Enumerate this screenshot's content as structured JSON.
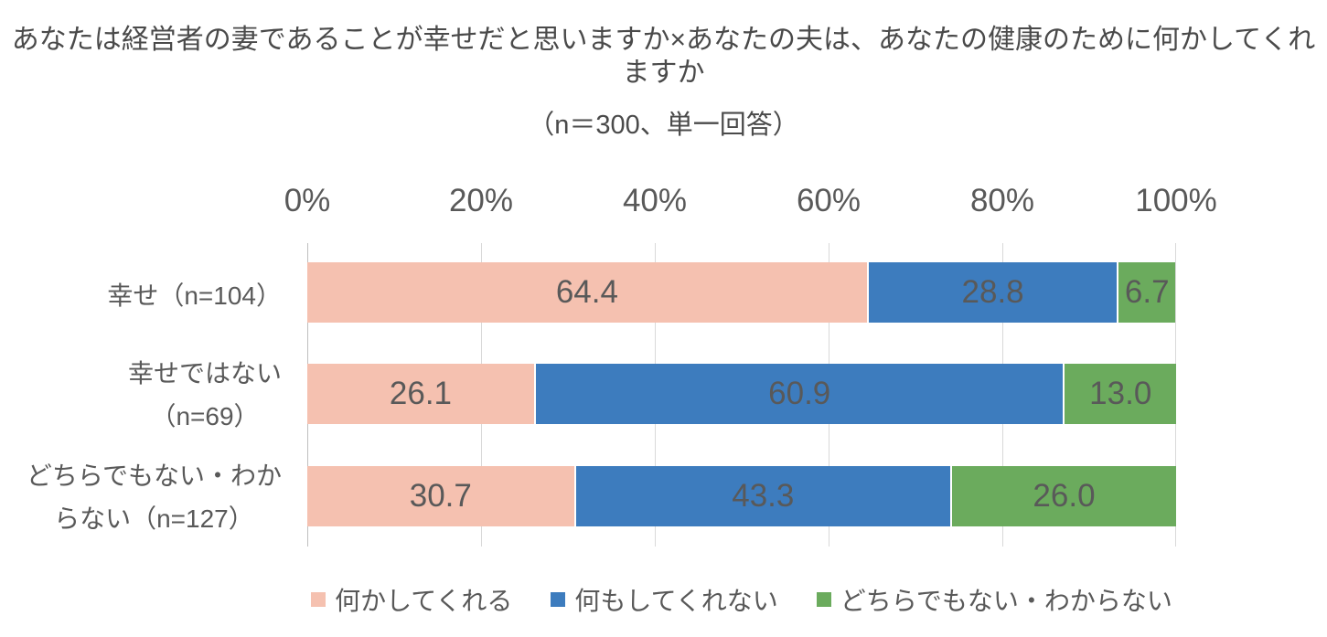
{
  "title": {
    "line1": "あなたは経営者の妻であることが幸せだと思いますか×あなたの夫は、あなたの健康のために何かしてくれますか",
    "line2": "（n＝300、単一回答）"
  },
  "chart_data": {
    "type": "bar",
    "orientation": "horizontal",
    "stacked": true,
    "unit": "percent",
    "grid": true,
    "legend_position": "bottom",
    "x_axis": {
      "range": [
        0,
        100
      ],
      "tick_labels": [
        "0%",
        "20%",
        "40%",
        "60%",
        "80%",
        "100%"
      ]
    },
    "categories": [
      {
        "label_lines": [
          "幸せ（n=104）"
        ],
        "n": 104
      },
      {
        "label_lines": [
          "幸せではない",
          "（n=69）"
        ],
        "n": 69
      },
      {
        "label_lines": [
          "どちらでもない・わか",
          "らない（n=127）"
        ],
        "n": 127
      }
    ],
    "series": [
      {
        "name": "何かしてくれる",
        "color": "#F5C1B0",
        "values": [
          64.4,
          26.1,
          30.7
        ]
      },
      {
        "name": "何もしてくれない",
        "color": "#3D7CBE",
        "values": [
          28.8,
          60.9,
          43.3
        ]
      },
      {
        "name": "どちらでもない・わからない",
        "color": "#6BAB5D",
        "values": [
          6.7,
          13.0,
          26.0
        ]
      }
    ]
  },
  "colors": {
    "grid": "#D9D9D9",
    "axis_line": "#BFBFBF",
    "title_text": "#4A4A4A",
    "label_text": "#595959",
    "background": "#FFFFFF"
  }
}
